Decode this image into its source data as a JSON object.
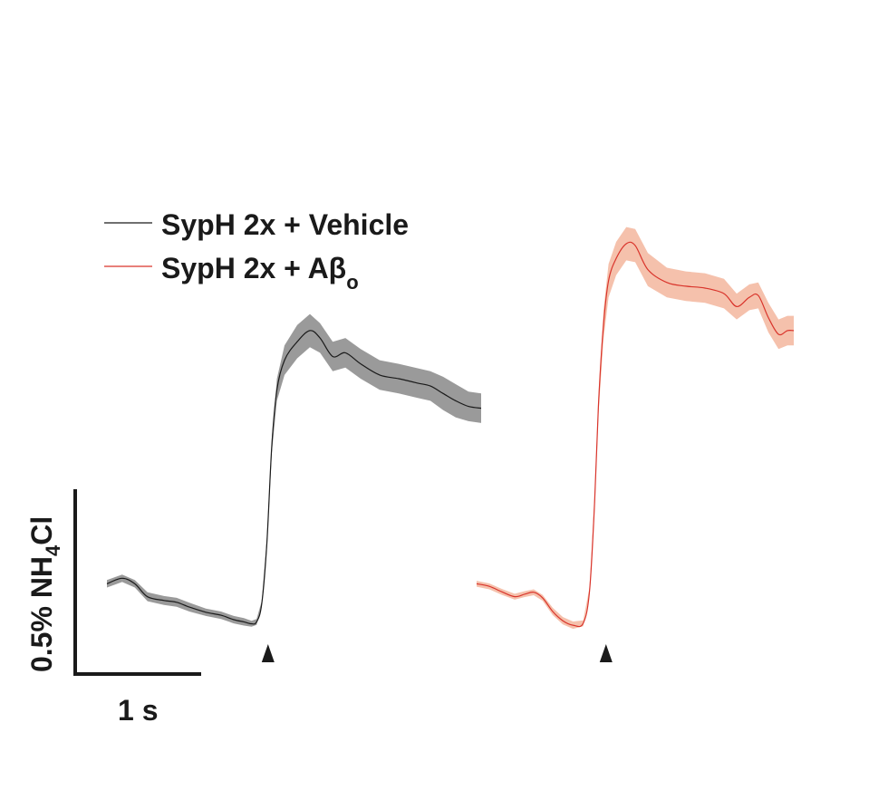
{
  "chart_data": {
    "type": "line",
    "grid": false,
    "x_unit": "s",
    "y_unit": "% NH4Cl",
    "legend_position": "top-left",
    "legend": [
      {
        "label": "SypH 2x + Vehicle",
        "color": "#1a1a1a"
      },
      {
        "label": "SypH 2x + Aβ",
        "subscript": "o",
        "color": "#d9342b"
      }
    ],
    "scale_bar": {
      "x_label": "1 s",
      "x_value": 1,
      "y_label_main": "0.5% NH",
      "y_label_sub": "4",
      "y_label_tail": "Cl",
      "y_value": 0.5
    },
    "stimulus_marker": "▲",
    "series": [
      {
        "name": "SypH 2x + Vehicle",
        "line_color": "#1a1a1a",
        "band_color": "#9a9a9a",
        "stimulus_time": 1.27,
        "points": [
          [
            0.0,
            0.075,
            0.01
          ],
          [
            0.12,
            0.09,
            0.01
          ],
          [
            0.22,
            0.075,
            0.01
          ],
          [
            0.32,
            0.04,
            0.012
          ],
          [
            0.45,
            0.03,
            0.012
          ],
          [
            0.55,
            0.025,
            0.012
          ],
          [
            0.65,
            0.012,
            0.012
          ],
          [
            0.78,
            -0.002,
            0.01
          ],
          [
            0.9,
            -0.01,
            0.01
          ],
          [
            1.0,
            -0.022,
            0.01
          ],
          [
            1.08,
            -0.028,
            0.01
          ],
          [
            1.14,
            -0.033,
            0.008
          ],
          [
            1.18,
            -0.028,
            0.008
          ],
          [
            1.22,
            0.02,
            0.008
          ],
          [
            1.26,
            0.18,
            0.015
          ],
          [
            1.3,
            0.45,
            0.02
          ],
          [
            1.34,
            0.6,
            0.03
          ],
          [
            1.4,
            0.68,
            0.04
          ],
          [
            1.5,
            0.73,
            0.045
          ],
          [
            1.6,
            0.76,
            0.045
          ],
          [
            1.68,
            0.74,
            0.04
          ],
          [
            1.78,
            0.69,
            0.04
          ],
          [
            1.88,
            0.7,
            0.04
          ],
          [
            2.0,
            0.67,
            0.04
          ],
          [
            2.15,
            0.64,
            0.04
          ],
          [
            2.3,
            0.63,
            0.04
          ],
          [
            2.45,
            0.618,
            0.04
          ],
          [
            2.55,
            0.61,
            0.04
          ],
          [
            2.65,
            0.59,
            0.045
          ],
          [
            2.75,
            0.57,
            0.045
          ],
          [
            2.85,
            0.555,
            0.04
          ],
          [
            2.95,
            0.55,
            0.04
          ]
        ]
      },
      {
        "name": "SypH 2x + Aβo",
        "line_color": "#d9342b",
        "band_color": "#f5c1ac",
        "stimulus_time": 1.02,
        "points": [
          [
            0.0,
            0.08,
            0.008
          ],
          [
            0.1,
            0.073,
            0.008
          ],
          [
            0.2,
            0.058,
            0.008
          ],
          [
            0.3,
            0.045,
            0.008
          ],
          [
            0.38,
            0.052,
            0.008
          ],
          [
            0.45,
            0.057,
            0.008
          ],
          [
            0.52,
            0.042,
            0.008
          ],
          [
            0.6,
            0.005,
            0.01
          ],
          [
            0.68,
            -0.02,
            0.01
          ],
          [
            0.76,
            -0.032,
            0.01
          ],
          [
            0.84,
            -0.027,
            0.008
          ],
          [
            0.89,
            0.06,
            0.01
          ],
          [
            0.93,
            0.3,
            0.02
          ],
          [
            0.96,
            0.56,
            0.025
          ],
          [
            1.0,
            0.78,
            0.04
          ],
          [
            1.04,
            0.9,
            0.045
          ],
          [
            1.1,
            0.96,
            0.045
          ],
          [
            1.18,
            1.0,
            0.045
          ],
          [
            1.25,
            0.995,
            0.045
          ],
          [
            1.35,
            0.93,
            0.045
          ],
          [
            1.5,
            0.895,
            0.04
          ],
          [
            1.65,
            0.885,
            0.04
          ],
          [
            1.8,
            0.88,
            0.04
          ],
          [
            1.95,
            0.865,
            0.04
          ],
          [
            2.05,
            0.83,
            0.035
          ],
          [
            2.15,
            0.855,
            0.035
          ],
          [
            2.22,
            0.86,
            0.035
          ],
          [
            2.3,
            0.8,
            0.04
          ],
          [
            2.38,
            0.755,
            0.04
          ],
          [
            2.45,
            0.765,
            0.04
          ],
          [
            2.5,
            0.765,
            0.04
          ]
        ]
      }
    ]
  }
}
